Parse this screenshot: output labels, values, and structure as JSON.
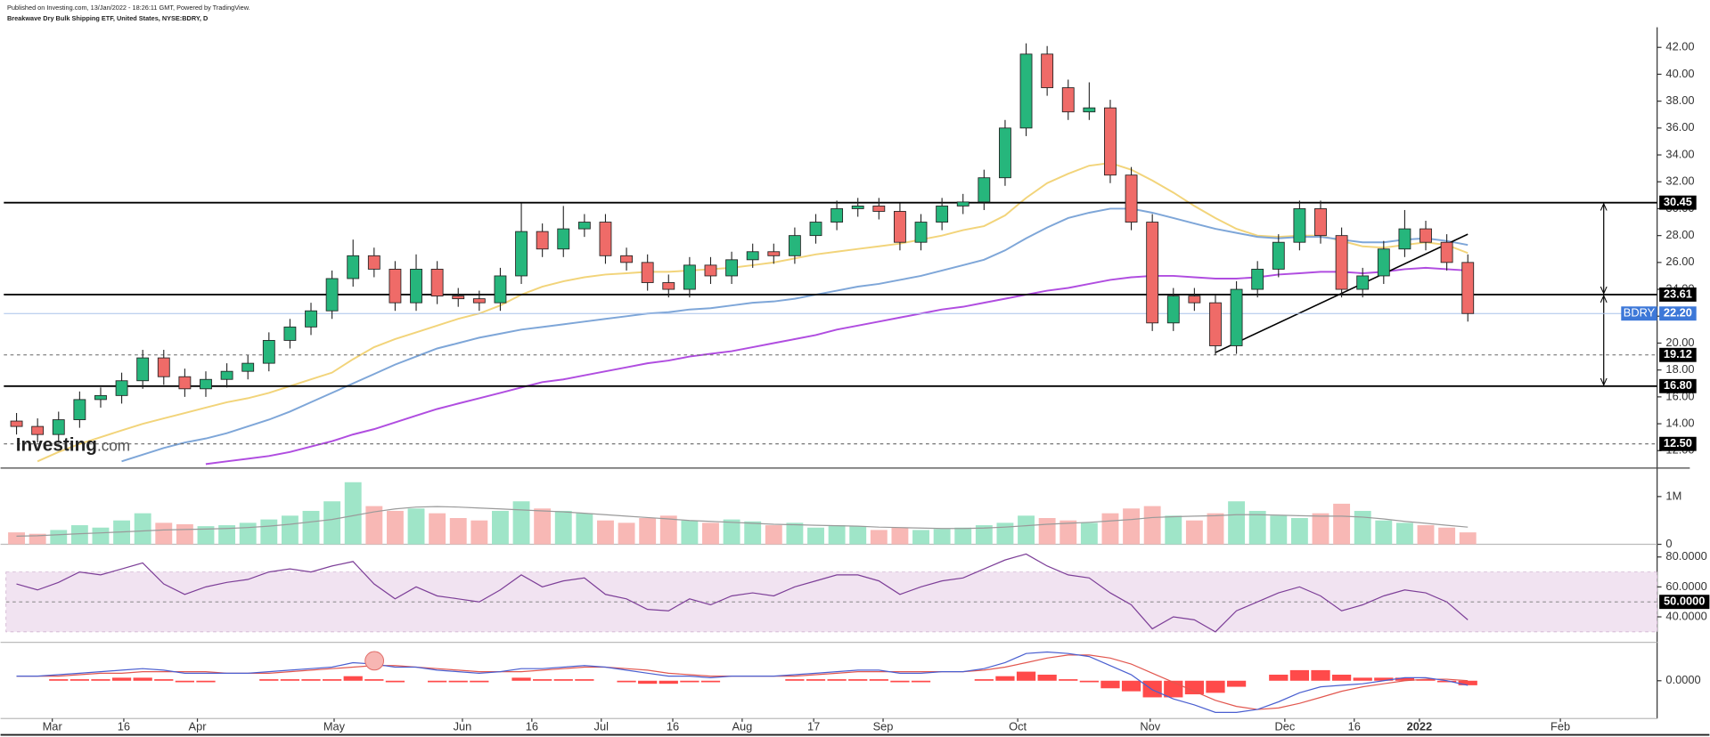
{
  "header": {
    "published": "Published on Investing.com, 13/Jan/2022 - 18:26:11 GMT, Powered by TradingView.",
    "instrument": "Breakwave Dry Bulk Shipping ETF, United States, NYSE:BDRY, D"
  },
  "watermark": {
    "brand": "Investing",
    "suffix": ".com"
  },
  "chart_data": [
    {
      "type": "candlestick",
      "symbol": "BDRY",
      "up_color": "#26b67c",
      "down_color": "#ef6b68",
      "open": [
        14.2,
        13.8,
        13.2,
        14.3,
        15.8,
        16.1,
        17.2,
        18.9,
        17.5,
        16.6,
        17.3,
        17.9,
        18.5,
        20.2,
        21.2,
        22.4,
        24.8,
        26.5,
        25.5,
        23.0,
        25.5,
        23.5,
        23.3,
        23.0,
        25.0,
        28.3,
        27.0,
        28.5,
        29.0,
        26.5,
        26.0,
        24.5,
        24.0,
        25.8,
        25.0,
        26.2,
        26.8,
        26.5,
        28.0,
        29.0,
        30.0,
        30.2,
        29.8,
        27.5,
        29.0,
        30.2,
        30.5,
        32.3,
        36.0,
        41.5,
        39.0,
        37.2,
        37.5,
        32.5,
        29.0,
        21.5,
        23.5,
        23.0,
        19.8,
        24.0,
        25.5,
        27.5,
        30.0,
        28.0,
        24.0,
        25.0,
        27.0,
        28.5,
        27.5,
        26.0
      ],
      "high": [
        14.8,
        14.4,
        14.9,
        16.4,
        16.7,
        17.8,
        19.5,
        19.5,
        18.1,
        17.9,
        18.5,
        19.1,
        20.8,
        21.8,
        23.0,
        25.4,
        27.7,
        27.1,
        26.1,
        26.6,
        26.1,
        24.1,
        23.9,
        25.6,
        30.4,
        28.9,
        30.2,
        29.6,
        29.6,
        27.1,
        26.6,
        25.1,
        26.4,
        26.4,
        26.8,
        27.4,
        27.4,
        28.6,
        29.6,
        30.6,
        30.8,
        30.8,
        30.4,
        29.6,
        30.8,
        31.1,
        32.9,
        36.6,
        42.3,
        42.1,
        39.6,
        39.4,
        38.1,
        33.1,
        29.6,
        24.1,
        24.1,
        23.6,
        24.6,
        26.1,
        28.1,
        30.6,
        30.6,
        28.6,
        25.6,
        27.6,
        29.9,
        29.1,
        28.1,
        26.6
      ],
      "low": [
        13.2,
        12.6,
        12.6,
        13.7,
        15.2,
        15.5,
        16.6,
        16.9,
        16.0,
        16.0,
        16.7,
        17.3,
        17.9,
        19.6,
        20.6,
        21.8,
        24.2,
        24.9,
        22.4,
        22.4,
        22.9,
        22.7,
        22.4,
        22.4,
        24.4,
        26.4,
        26.4,
        27.9,
        25.9,
        25.4,
        23.9,
        23.4,
        23.4,
        24.4,
        24.4,
        25.6,
        25.9,
        25.9,
        27.4,
        28.4,
        29.4,
        29.2,
        26.9,
        26.9,
        28.4,
        29.6,
        29.9,
        31.7,
        35.4,
        38.4,
        36.6,
        36.6,
        31.9,
        28.4,
        20.9,
        20.9,
        22.4,
        19.1,
        19.2,
        23.4,
        24.9,
        26.9,
        27.4,
        23.4,
        23.4,
        24.4,
        26.4,
        26.9,
        25.4,
        21.6
      ],
      "close": [
        13.8,
        13.2,
        14.3,
        15.8,
        16.1,
        17.2,
        18.9,
        17.5,
        16.6,
        17.3,
        17.9,
        18.5,
        20.2,
        21.2,
        22.4,
        24.8,
        26.5,
        25.5,
        23.0,
        25.5,
        23.5,
        23.3,
        23.0,
        25.0,
        28.3,
        27.0,
        28.5,
        29.0,
        26.5,
        26.0,
        24.5,
        24.0,
        25.8,
        25.0,
        26.2,
        26.8,
        26.5,
        28.0,
        29.0,
        30.0,
        30.2,
        29.8,
        27.5,
        29.0,
        30.2,
        30.5,
        32.3,
        36.0,
        41.5,
        39.0,
        37.2,
        37.5,
        32.5,
        29.0,
        21.5,
        23.5,
        23.0,
        19.8,
        24.0,
        25.5,
        27.5,
        30.0,
        28.0,
        24.0,
        25.0,
        27.0,
        28.5,
        27.5,
        26.0,
        22.2
      ],
      "overlays": [
        {
          "color": "#f2d47a",
          "values": [
            null,
            11.2,
            11.9,
            12.5,
            13.0,
            13.5,
            14.0,
            14.4,
            14.8,
            15.2,
            15.6,
            15.9,
            16.3,
            16.8,
            17.3,
            17.8,
            18.8,
            19.7,
            20.3,
            20.8,
            21.3,
            21.8,
            22.2,
            22.8,
            23.6,
            24.2,
            24.6,
            24.9,
            25.1,
            25.2,
            25.3,
            25.3,
            25.4,
            25.5,
            25.6,
            25.8,
            26.0,
            26.3,
            26.6,
            26.8,
            27.0,
            27.2,
            27.4,
            27.7,
            28.0,
            28.4,
            28.7,
            29.5,
            30.8,
            31.9,
            32.6,
            33.2,
            33.4,
            32.9,
            32.1,
            31.2,
            30.2,
            29.3,
            28.5,
            28.0,
            27.9,
            28.0,
            28.0,
            27.6,
            27.2,
            27.1,
            27.3,
            27.5,
            27.3,
            26.7
          ]
        },
        {
          "color": "#7ea6d8",
          "values": [
            null,
            null,
            null,
            null,
            null,
            11.2,
            11.7,
            12.2,
            12.6,
            12.9,
            13.3,
            13.8,
            14.3,
            14.9,
            15.6,
            16.3,
            17.0,
            17.7,
            18.4,
            19.0,
            19.6,
            20.0,
            20.4,
            20.7,
            21.0,
            21.2,
            21.4,
            21.6,
            21.8,
            22.0,
            22.2,
            22.3,
            22.5,
            22.6,
            22.8,
            23.0,
            23.1,
            23.3,
            23.6,
            23.9,
            24.2,
            24.4,
            24.7,
            25.0,
            25.4,
            25.8,
            26.2,
            26.9,
            27.8,
            28.6,
            29.3,
            29.7,
            30.0,
            30.0,
            29.7,
            29.3,
            28.9,
            28.5,
            28.2,
            27.9,
            27.8,
            27.9,
            27.9,
            27.7,
            27.5,
            27.5,
            27.7,
            27.8,
            27.6,
            27.3
          ]
        },
        {
          "color": "#b04de0",
          "values": [
            null,
            null,
            null,
            null,
            null,
            null,
            null,
            null,
            null,
            11.0,
            11.2,
            11.4,
            11.6,
            11.9,
            12.3,
            12.7,
            13.2,
            13.6,
            14.1,
            14.6,
            15.1,
            15.5,
            15.9,
            16.3,
            16.7,
            17.1,
            17.3,
            17.6,
            17.9,
            18.2,
            18.5,
            18.7,
            19.0,
            19.2,
            19.4,
            19.7,
            20.0,
            20.3,
            20.6,
            21.0,
            21.3,
            21.6,
            21.9,
            22.2,
            22.5,
            22.7,
            23.0,
            23.3,
            23.6,
            23.9,
            24.1,
            24.4,
            24.7,
            24.9,
            25.0,
            25.0,
            24.9,
            24.8,
            24.8,
            24.9,
            25.1,
            25.2,
            25.3,
            25.3,
            25.2,
            25.3,
            25.5,
            25.6,
            25.5,
            25.4
          ]
        }
      ],
      "levels": [
        {
          "value": 30.45,
          "style": "solid"
        },
        {
          "value": 23.61,
          "style": "solid"
        },
        {
          "value": 19.12,
          "style": "dashed"
        },
        {
          "value": 16.8,
          "label": "16.80",
          "style": "solid"
        },
        {
          "value": 12.5,
          "label": "12.50",
          "style": "dashed"
        }
      ],
      "last": {
        "value": 22.2,
        "label": "22.20",
        "color": "#3d78d8"
      },
      "trendline": {
        "x": [
          57,
          69
        ],
        "y": [
          19.3,
          28.1
        ]
      },
      "xlim": [
        -0.5,
        78
      ],
      "xticks": [
        {
          "value": 1.7,
          "label": "Mar"
        },
        {
          "value": 5.1,
          "label": "16"
        },
        {
          "value": 8.6,
          "label": "Apr"
        },
        {
          "value": 15.1,
          "label": "May"
        },
        {
          "value": 21.2,
          "label": "Jun"
        },
        {
          "value": 24.5,
          "label": "16"
        },
        {
          "value": 27.8,
          "label": "Jul"
        },
        {
          "value": 31.2,
          "label": "16"
        },
        {
          "value": 34.5,
          "label": "Aug"
        },
        {
          "value": 37.9,
          "label": "17"
        },
        {
          "value": 41.2,
          "label": "Sep"
        },
        {
          "value": 47.6,
          "label": "Oct"
        },
        {
          "value": 53.9,
          "label": "Nov"
        },
        {
          "value": 60.3,
          "label": "Dec"
        },
        {
          "value": 63.6,
          "label": "16"
        },
        {
          "value": 66.7,
          "label": "2022",
          "bold": true
        },
        {
          "value": 73.4,
          "label": "Feb"
        }
      ],
      "ylim": [
        10.7,
        43.5
      ],
      "yticks": [
        {
          "value": 12,
          "label": "12.00"
        },
        {
          "value": 14,
          "label": "14.00"
        },
        {
          "value": 16,
          "label": "16.00"
        },
        {
          "value": 18,
          "label": "18.00"
        },
        {
          "value": 20,
          "label": "20.00"
        },
        {
          "value": 22,
          "label": "22.00"
        },
        {
          "value": 24,
          "label": "24.00"
        },
        {
          "value": 26,
          "label": "26.00"
        },
        {
          "value": 28,
          "label": "28.00"
        },
        {
          "value": 30,
          "label": "30.00"
        },
        {
          "value": 32,
          "label": "32.00"
        },
        {
          "value": 34,
          "label": "34.00"
        },
        {
          "value": 36,
          "label": "36.00"
        },
        {
          "value": 38,
          "label": "38.00"
        },
        {
          "value": 40,
          "label": "40.00"
        },
        {
          "value": 42,
          "label": "42.00"
        }
      ]
    },
    {
      "type": "bar",
      "up_color": "#9fe5c8",
      "down_color": "#f8b8b5",
      "values": [
        250000,
        220000,
        300000,
        400000,
        350000,
        500000,
        650000,
        450000,
        420000,
        380000,
        400000,
        450000,
        520000,
        600000,
        700000,
        900000,
        1300000,
        800000,
        700000,
        750000,
        650000,
        550000,
        500000,
        700000,
        900000,
        750000,
        700000,
        650000,
        500000,
        450000,
        550000,
        600000,
        500000,
        450000,
        520000,
        480000,
        400000,
        450000,
        350000,
        400000,
        380000,
        300000,
        350000,
        300000,
        320000,
        350000,
        400000,
        450000,
        600000,
        550000,
        500000,
        450000,
        650000,
        750000,
        800000,
        600000,
        500000,
        650000,
        900000,
        700000,
        600000,
        550000,
        650000,
        850000,
        700000,
        500000,
        450000,
        400000,
        350000,
        250000
      ],
      "overlay": {
        "color": "#9a9a9a",
        "values": [
          170000,
          180000,
          200000,
          220000,
          240000,
          260000,
          280000,
          300000,
          310000,
          320000,
          330000,
          350000,
          380000,
          420000,
          470000,
          520000,
          600000,
          680000,
          740000,
          780000,
          790000,
          780000,
          760000,
          740000,
          720000,
          700000,
          680000,
          650000,
          620000,
          590000,
          560000,
          530000,
          500000,
          480000,
          460000,
          440000,
          420000,
          410000,
          400000,
          390000,
          380000,
          360000,
          350000,
          340000,
          330000,
          330000,
          340000,
          360000,
          390000,
          420000,
          440000,
          460000,
          490000,
          520000,
          560000,
          580000,
          590000,
          600000,
          620000,
          620000,
          610000,
          600000,
          590000,
          590000,
          570000,
          530000,
          480000,
          440000,
          400000,
          360000
        ]
      },
      "ylim": [
        0,
        1550000
      ],
      "yticks": [
        0,
        {
          "value": 1000000,
          "label": "1M"
        }
      ]
    },
    {
      "type": "line",
      "color": "#7d3f98",
      "band": [
        30,
        70
      ],
      "band_color": "#f1e3f1",
      "level": {
        "value": 50,
        "label": "50.0000"
      },
      "values": [
        62,
        58,
        63,
        70,
        68,
        72,
        76,
        62,
        55,
        60,
        63,
        65,
        70,
        72,
        70,
        74,
        77,
        62,
        52,
        60,
        54,
        52,
        50,
        58,
        68,
        60,
        64,
        66,
        55,
        52,
        45,
        44,
        52,
        48,
        54,
        56,
        54,
        60,
        64,
        68,
        68,
        64,
        55,
        60,
        64,
        66,
        72,
        78,
        82,
        74,
        68,
        66,
        56,
        48,
        32,
        40,
        38,
        30,
        44,
        50,
        56,
        60,
        54,
        44,
        48,
        54,
        58,
        56,
        50,
        38
      ],
      "ylim": [
        23,
        87
      ],
      "yticks": [
        {
          "value": 40,
          "label": "40.0000"
        },
        {
          "value": 60,
          "label": "60.0000"
        },
        {
          "value": 80,
          "label": "80.0000"
        }
      ]
    },
    {
      "type": "macd",
      "macd": {
        "color": "#4a5fd0",
        "values": [
          0.3,
          0.3,
          0.4,
          0.5,
          0.6,
          0.7,
          0.8,
          0.7,
          0.5,
          0.5,
          0.5,
          0.5,
          0.6,
          0.7,
          0.8,
          0.9,
          1.2,
          1.1,
          0.9,
          0.9,
          0.7,
          0.6,
          0.5,
          0.6,
          0.8,
          0.8,
          0.9,
          1.0,
          0.9,
          0.7,
          0.5,
          0.3,
          0.3,
          0.2,
          0.3,
          0.3,
          0.3,
          0.4,
          0.5,
          0.6,
          0.7,
          0.7,
          0.5,
          0.5,
          0.6,
          0.6,
          0.8,
          1.2,
          1.8,
          1.9,
          1.8,
          1.6,
          1.0,
          0.4,
          -0.6,
          -1.2,
          -1.6,
          -2.1,
          -2.1,
          -1.9,
          -1.4,
          -0.8,
          -0.4,
          -0.3,
          -0.2,
          0.0,
          0.2,
          0.2,
          0.0,
          -0.3
        ]
      },
      "signal": {
        "color": "#e2574f",
        "values": [
          0.3,
          0.3,
          0.3,
          0.4,
          0.5,
          0.5,
          0.6,
          0.6,
          0.6,
          0.6,
          0.5,
          0.5,
          0.5,
          0.6,
          0.7,
          0.8,
          0.9,
          1.0,
          1.0,
          0.9,
          0.8,
          0.7,
          0.6,
          0.6,
          0.6,
          0.7,
          0.8,
          0.9,
          0.9,
          0.8,
          0.7,
          0.5,
          0.4,
          0.3,
          0.3,
          0.3,
          0.3,
          0.3,
          0.4,
          0.5,
          0.6,
          0.6,
          0.6,
          0.6,
          0.6,
          0.6,
          0.7,
          0.9,
          1.2,
          1.5,
          1.7,
          1.7,
          1.5,
          1.1,
          0.5,
          -0.1,
          -0.7,
          -1.3,
          -1.7,
          -1.9,
          -1.8,
          -1.5,
          -1.1,
          -0.7,
          -0.4,
          -0.2,
          0.0,
          0.1,
          0.1,
          0.0
        ]
      },
      "histogram": {
        "color": "#ff4a4a",
        "values": [
          0.0,
          0.0,
          0.1,
          0.1,
          0.1,
          0.2,
          0.2,
          0.1,
          -0.1,
          -0.1,
          0.0,
          0.0,
          0.1,
          0.1,
          0.1,
          0.1,
          0.3,
          0.1,
          -0.1,
          0.0,
          -0.1,
          -0.1,
          -0.1,
          0.0,
          0.2,
          0.1,
          0.1,
          0.1,
          0.0,
          -0.1,
          -0.2,
          -0.2,
          -0.1,
          -0.1,
          0.0,
          0.0,
          0.0,
          0.1,
          0.1,
          0.1,
          0.1,
          0.1,
          -0.1,
          -0.1,
          0.0,
          0.0,
          0.1,
          0.3,
          0.6,
          0.4,
          0.1,
          -0.1,
          -0.5,
          -0.7,
          -1.1,
          -1.1,
          -0.9,
          -0.8,
          -0.4,
          0.0,
          0.4,
          0.7,
          0.7,
          0.4,
          0.2,
          0.2,
          0.2,
          0.1,
          -0.1,
          -0.3
        ]
      },
      "ylim": [
        -2.5,
        2.4
      ],
      "yticks": [
        {
          "value": 0,
          "label": "0.0000"
        }
      ]
    }
  ]
}
